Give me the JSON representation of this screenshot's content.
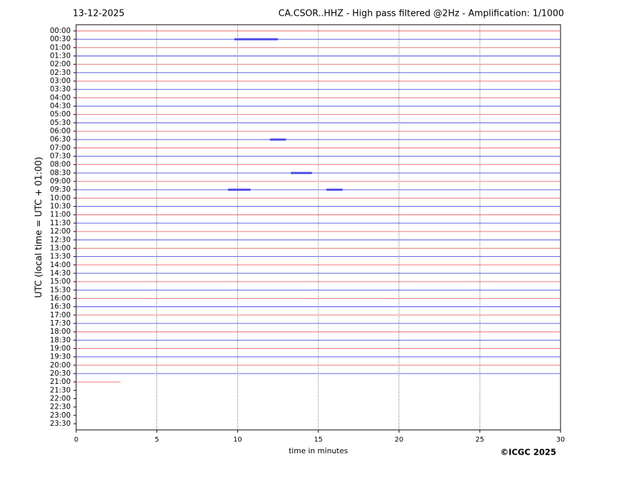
{
  "chart_data": {
    "type": "helicorder",
    "date": "13-12-2025",
    "title": "CA.CSOR..HHZ - High pass filtered @2Hz - Amplification: 1/1000",
    "ylabel": "UTC (local time = UTC + 01:00)",
    "xlabel": "time in minutes",
    "credit": "©ICGC 2025",
    "xlim": [
      0,
      30
    ],
    "xticks": [
      0,
      5,
      10,
      15,
      20,
      25,
      30
    ],
    "grid": true,
    "categories": [
      "00:00",
      "00:30",
      "01:00",
      "01:30",
      "02:00",
      "02:30",
      "03:00",
      "03:30",
      "04:00",
      "04:30",
      "05:00",
      "05:30",
      "06:00",
      "06:30",
      "07:00",
      "07:30",
      "08:00",
      "08:30",
      "09:00",
      "09:30",
      "10:00",
      "10:30",
      "11:00",
      "11:30",
      "12:00",
      "12:30",
      "13:00",
      "13:30",
      "14:00",
      "14:30",
      "15:00",
      "15:30",
      "16:00",
      "16:30",
      "17:00",
      "17:30",
      "18:00",
      "18:30",
      "19:00",
      "19:30",
      "20:00",
      "20:30",
      "21:00",
      "21:30",
      "22:00",
      "22:30",
      "23:00",
      "23:30"
    ],
    "trace_end": [
      30,
      30,
      30,
      30,
      30,
      30,
      30,
      30,
      30,
      30,
      30,
      30,
      30,
      30,
      30,
      30,
      30,
      30,
      30,
      30,
      30,
      30,
      30,
      30,
      30,
      30,
      30,
      30,
      30,
      30,
      30,
      30,
      30,
      30,
      30,
      30,
      30,
      30,
      30,
      30,
      30,
      30,
      2.75,
      null,
      null,
      null,
      null,
      null
    ],
    "colors": [
      "#f06060",
      "#4848e8"
    ],
    "bursts": [
      {
        "row": 1,
        "start": 9.8,
        "end": 12.5
      },
      {
        "row": 19,
        "start": 9.4,
        "end": 10.8
      },
      {
        "row": 19,
        "start": 15.5,
        "end": 16.5
      },
      {
        "row": 17,
        "start": 13.3,
        "end": 14.6
      },
      {
        "row": 13,
        "start": 12.0,
        "end": 13.0
      }
    ]
  }
}
